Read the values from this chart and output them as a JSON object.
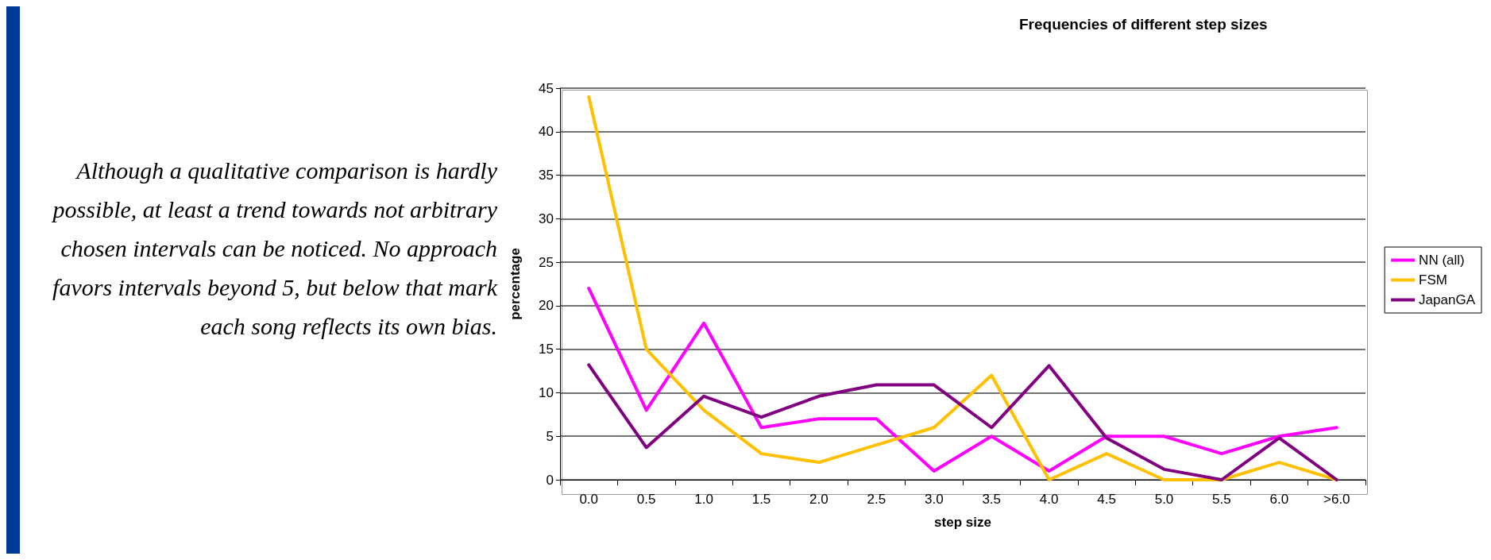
{
  "chart_data": {
    "type": "line",
    "title": "Frequencies of different step sizes",
    "xlabel": "step size",
    "ylabel": "percentage",
    "categories": [
      "0.0",
      "0.5",
      "1.0",
      "1.5",
      "2.0",
      "2.5",
      "3.0",
      "3.5",
      "4.0",
      "4.5",
      "5.0",
      "5.5",
      "6.0",
      ">6.0"
    ],
    "series": [
      {
        "name": "NN (all)",
        "color": "#ff00ff",
        "values": [
          22,
          8,
          18,
          6,
          7,
          7,
          1,
          5,
          1,
          5,
          5,
          3,
          5,
          6
        ]
      },
      {
        "name": "FSM",
        "color": "#ffc000",
        "values": [
          44,
          15,
          8,
          3,
          2,
          4,
          6,
          12,
          0,
          3,
          0,
          0,
          2,
          0
        ]
      },
      {
        "name": "JapanGA",
        "color": "#800080",
        "values": [
          13.2,
          3.7,
          9.6,
          7.2,
          9.6,
          10.9,
          10.9,
          6,
          13.1,
          4.8,
          1.2,
          0,
          4.8,
          0
        ]
      }
    ],
    "ylim": [
      0,
      45
    ],
    "yticks": [
      0,
      5,
      10,
      15,
      20,
      25,
      30,
      35,
      40,
      45
    ],
    "grid": "y",
    "legend": "right",
    "marker": "none",
    "line_style": "solid",
    "annotations": [
      "Although a qualitative comparison is hardly possible, at least a trend towards not arbitrary chosen intervals can be noticed. No approach favors intervals beyond 5, but below that mark each song reflects its own bias."
    ]
  }
}
